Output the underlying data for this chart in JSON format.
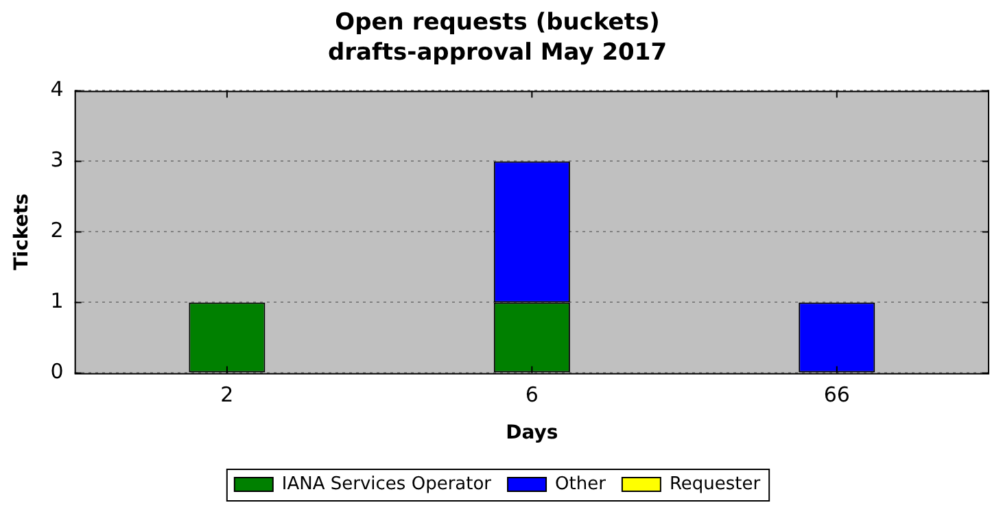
{
  "chart_data": {
    "type": "bar",
    "title": "Open requests (buckets)",
    "subtitle": "drafts-approval May 2017",
    "xlabel": "Days",
    "ylabel": "Tickets",
    "categories": [
      "2",
      "6",
      "66"
    ],
    "series": [
      {
        "name": "IANA Services Operator",
        "color": "#008000",
        "values": [
          1,
          1,
          0
        ]
      },
      {
        "name": "Other",
        "color": "#0000ff",
        "values": [
          0,
          2,
          1
        ]
      },
      {
        "name": "Requester",
        "color": "#ffff00",
        "values": [
          0,
          0,
          0
        ]
      }
    ],
    "stacked": true,
    "ylim": [
      0,
      4
    ],
    "yticks": [
      0,
      1,
      2,
      3,
      4
    ],
    "grid": "y",
    "legend": "bottom"
  }
}
